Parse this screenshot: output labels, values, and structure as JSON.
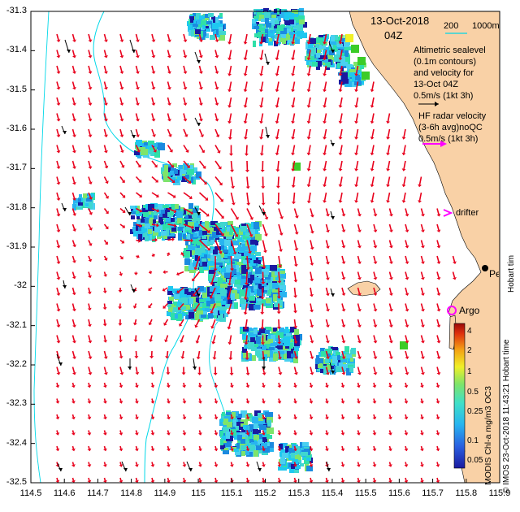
{
  "title": {
    "date": "13-Oct-2018",
    "hour": "04Z"
  },
  "scale_bar": {
    "left": "200",
    "right": "1000m"
  },
  "legend": {
    "altimetry_lines": [
      "Altimetric sealevel",
      "(0.1m contours)",
      "and velocity for",
      "13-Oct 04Z",
      "0.5m/s (1kt 3h)"
    ],
    "hf_lines": [
      "HF radar velocity",
      "(3-6h avg)noQC",
      "0.5m/s (1kt 3h)"
    ],
    "drifter": "drifter",
    "argo": "Argo",
    "perth": "Perth"
  },
  "axes": {
    "y_ticks": [
      "-31.3",
      "-31.4",
      "-31.5",
      "-31.6",
      "-31.7",
      "-31.8",
      "-31.9",
      "-32",
      "-32.1",
      "-32.2",
      "-32.3",
      "-32.4",
      "-32.5"
    ],
    "x_ticks": [
      "114.5",
      "114.6",
      "114.7",
      "114.8",
      "114.9",
      "115",
      "115.1",
      "115.2",
      "115.3",
      "115.4",
      "115.5",
      "115.6",
      "115.7",
      "115.8",
      "115.9"
    ],
    "lat_range": [
      -32.5,
      -31.3
    ],
    "lon_range": [
      114.5,
      115.9
    ]
  },
  "colorbar": {
    "ticks": [
      "4",
      "2",
      "1",
      "0.5",
      "0.25",
      "0.1",
      "0.05"
    ],
    "label": "MODIS Chl-a mg/m3 OC3"
  },
  "credit": "© IMOS 23-Oct-2018 11:43:21 Hobart time",
  "colors": {
    "land": "#f9d1a6",
    "hf_arrow": "#e8001c",
    "alt_arrow": "#000000",
    "bathymetry": "#00d8e8",
    "drifter": "#ff00ff"
  }
}
